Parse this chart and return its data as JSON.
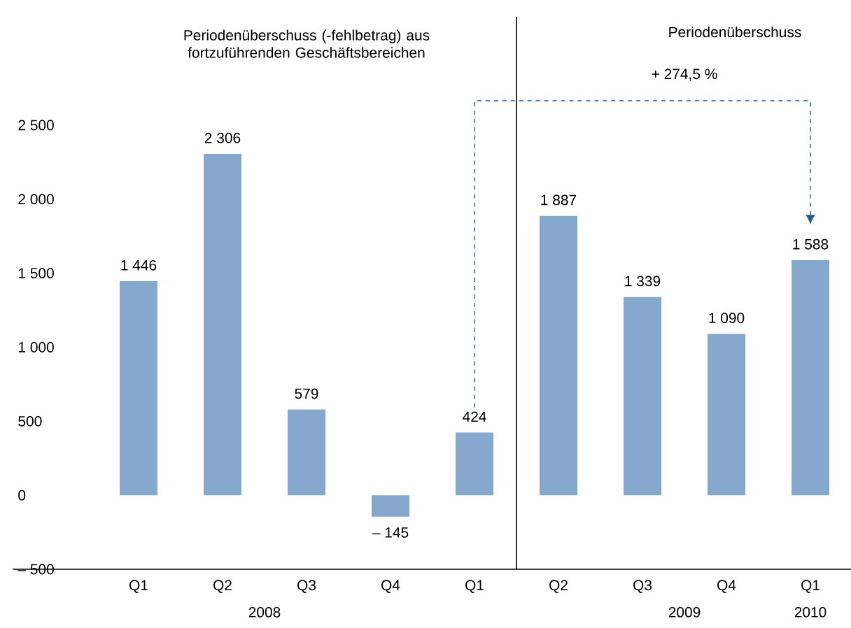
{
  "chart_data": {
    "type": "bar",
    "categories": [
      "Q1",
      "Q2",
      "Q3",
      "Q4",
      "Q1",
      "Q2",
      "Q3",
      "Q4",
      "Q1"
    ],
    "values": [
      1446,
      2306,
      579,
      -145,
      424,
      1887,
      1339,
      1090,
      1588
    ],
    "value_labels": [
      "1 446",
      "2 306",
      "579",
      "– 145",
      "424",
      "1 887",
      "1 339",
      "1 090",
      "1 588"
    ],
    "color": "#86a8cf",
    "ylim": [
      -500,
      2500
    ],
    "yticks": [
      {
        "value": -500,
        "label": "– 500"
      },
      0,
      500,
      {
        "value": 1000,
        "label": "1 000"
      },
      {
        "value": 1500,
        "label": "1 500"
      },
      {
        "value": 2000,
        "label": "2 000"
      },
      {
        "value": 2500,
        "label": "2 500"
      }
    ],
    "annotations": [
      "Periodenüberschuss (-fehlbetrag) aus fortzuführenden Geschäftsbereichen",
      "Periodenüberschuss",
      "+ 274,5 %",
      "2008",
      "2009",
      "2010"
    ],
    "grid": false
  }
}
